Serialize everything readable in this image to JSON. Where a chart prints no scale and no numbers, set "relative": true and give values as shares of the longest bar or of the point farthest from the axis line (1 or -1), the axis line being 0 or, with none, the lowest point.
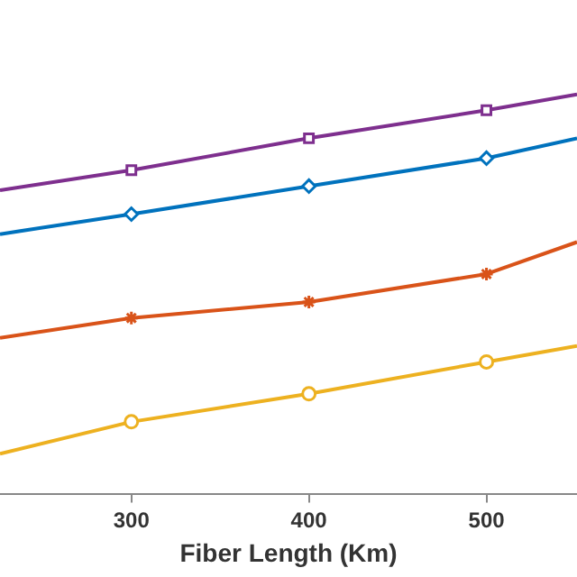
{
  "chart_data": {
    "type": "line",
    "xlabel": "Fiber Length (Km)",
    "relative": true,
    "x": [
      226,
      300,
      400,
      500,
      551
    ],
    "xlim": [
      226,
      551
    ],
    "xticks": [
      300,
      400,
      500
    ],
    "grid": false,
    "legend": false,
    "series": [
      {
        "color": "#7e2f8e",
        "marker": "square",
        "values": [
          0.76,
          0.81,
          0.89,
          0.96,
          1
        ]
      },
      {
        "color": "#0072bd",
        "marker": "diamond",
        "values": [
          0.65,
          0.7,
          0.77,
          0.84,
          0.89
        ]
      },
      {
        "color": "#d95319",
        "marker": "cross",
        "values": [
          0.39,
          0.44,
          0.48,
          0.55,
          0.63
        ]
      },
      {
        "color": "#edb120",
        "marker": "circle",
        "values": [
          0.1,
          0.18,
          0.25,
          0.33,
          0.37
        ]
      }
    ]
  }
}
